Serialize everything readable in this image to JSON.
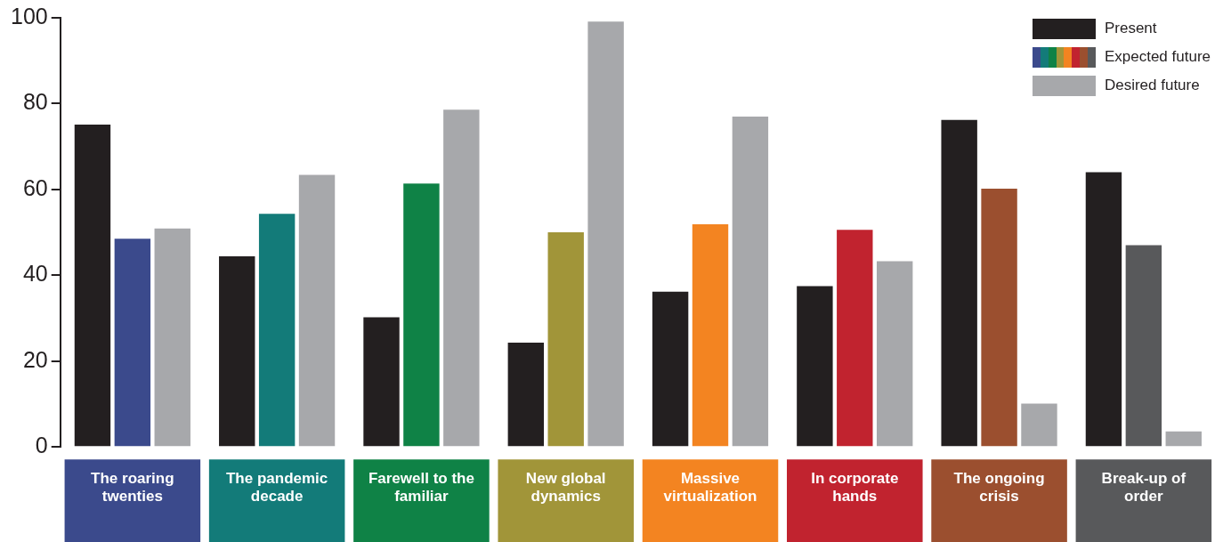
{
  "chart_data": {
    "type": "bar",
    "categories": [
      "The roaring twenties",
      "The pandemic decade",
      "Farewell to the familiar",
      "New global dynamics",
      "Massive virtualization",
      "In corporate hands",
      "The ongoing crisis",
      "Break-up of order"
    ],
    "series": [
      {
        "name": "Present",
        "color": "#231f20",
        "values": [
          75.1,
          44.4,
          30.2,
          24.3,
          36.2,
          37.5,
          76.2,
          64.0
        ]
      },
      {
        "name": "Expected future",
        "colors": [
          "#3b4a8c",
          "#137b79",
          "#0f8246",
          "#a19539",
          "#f38421",
          "#c1232f",
          "#9b4f2f",
          "#58595b"
        ],
        "values": [
          48.5,
          54.3,
          61.4,
          50.0,
          51.9,
          50.6,
          60.2,
          47.0
        ]
      },
      {
        "name": "Desired future",
        "color": "#a7a8ab",
        "values": [
          50.9,
          63.4,
          78.6,
          99.1,
          77.0,
          43.3,
          10.1,
          3.6
        ]
      }
    ],
    "ylim": [
      0,
      100
    ],
    "yticks": [
      0,
      20,
      40,
      60,
      80,
      100
    ],
    "grid": false,
    "legend": "top right"
  }
}
